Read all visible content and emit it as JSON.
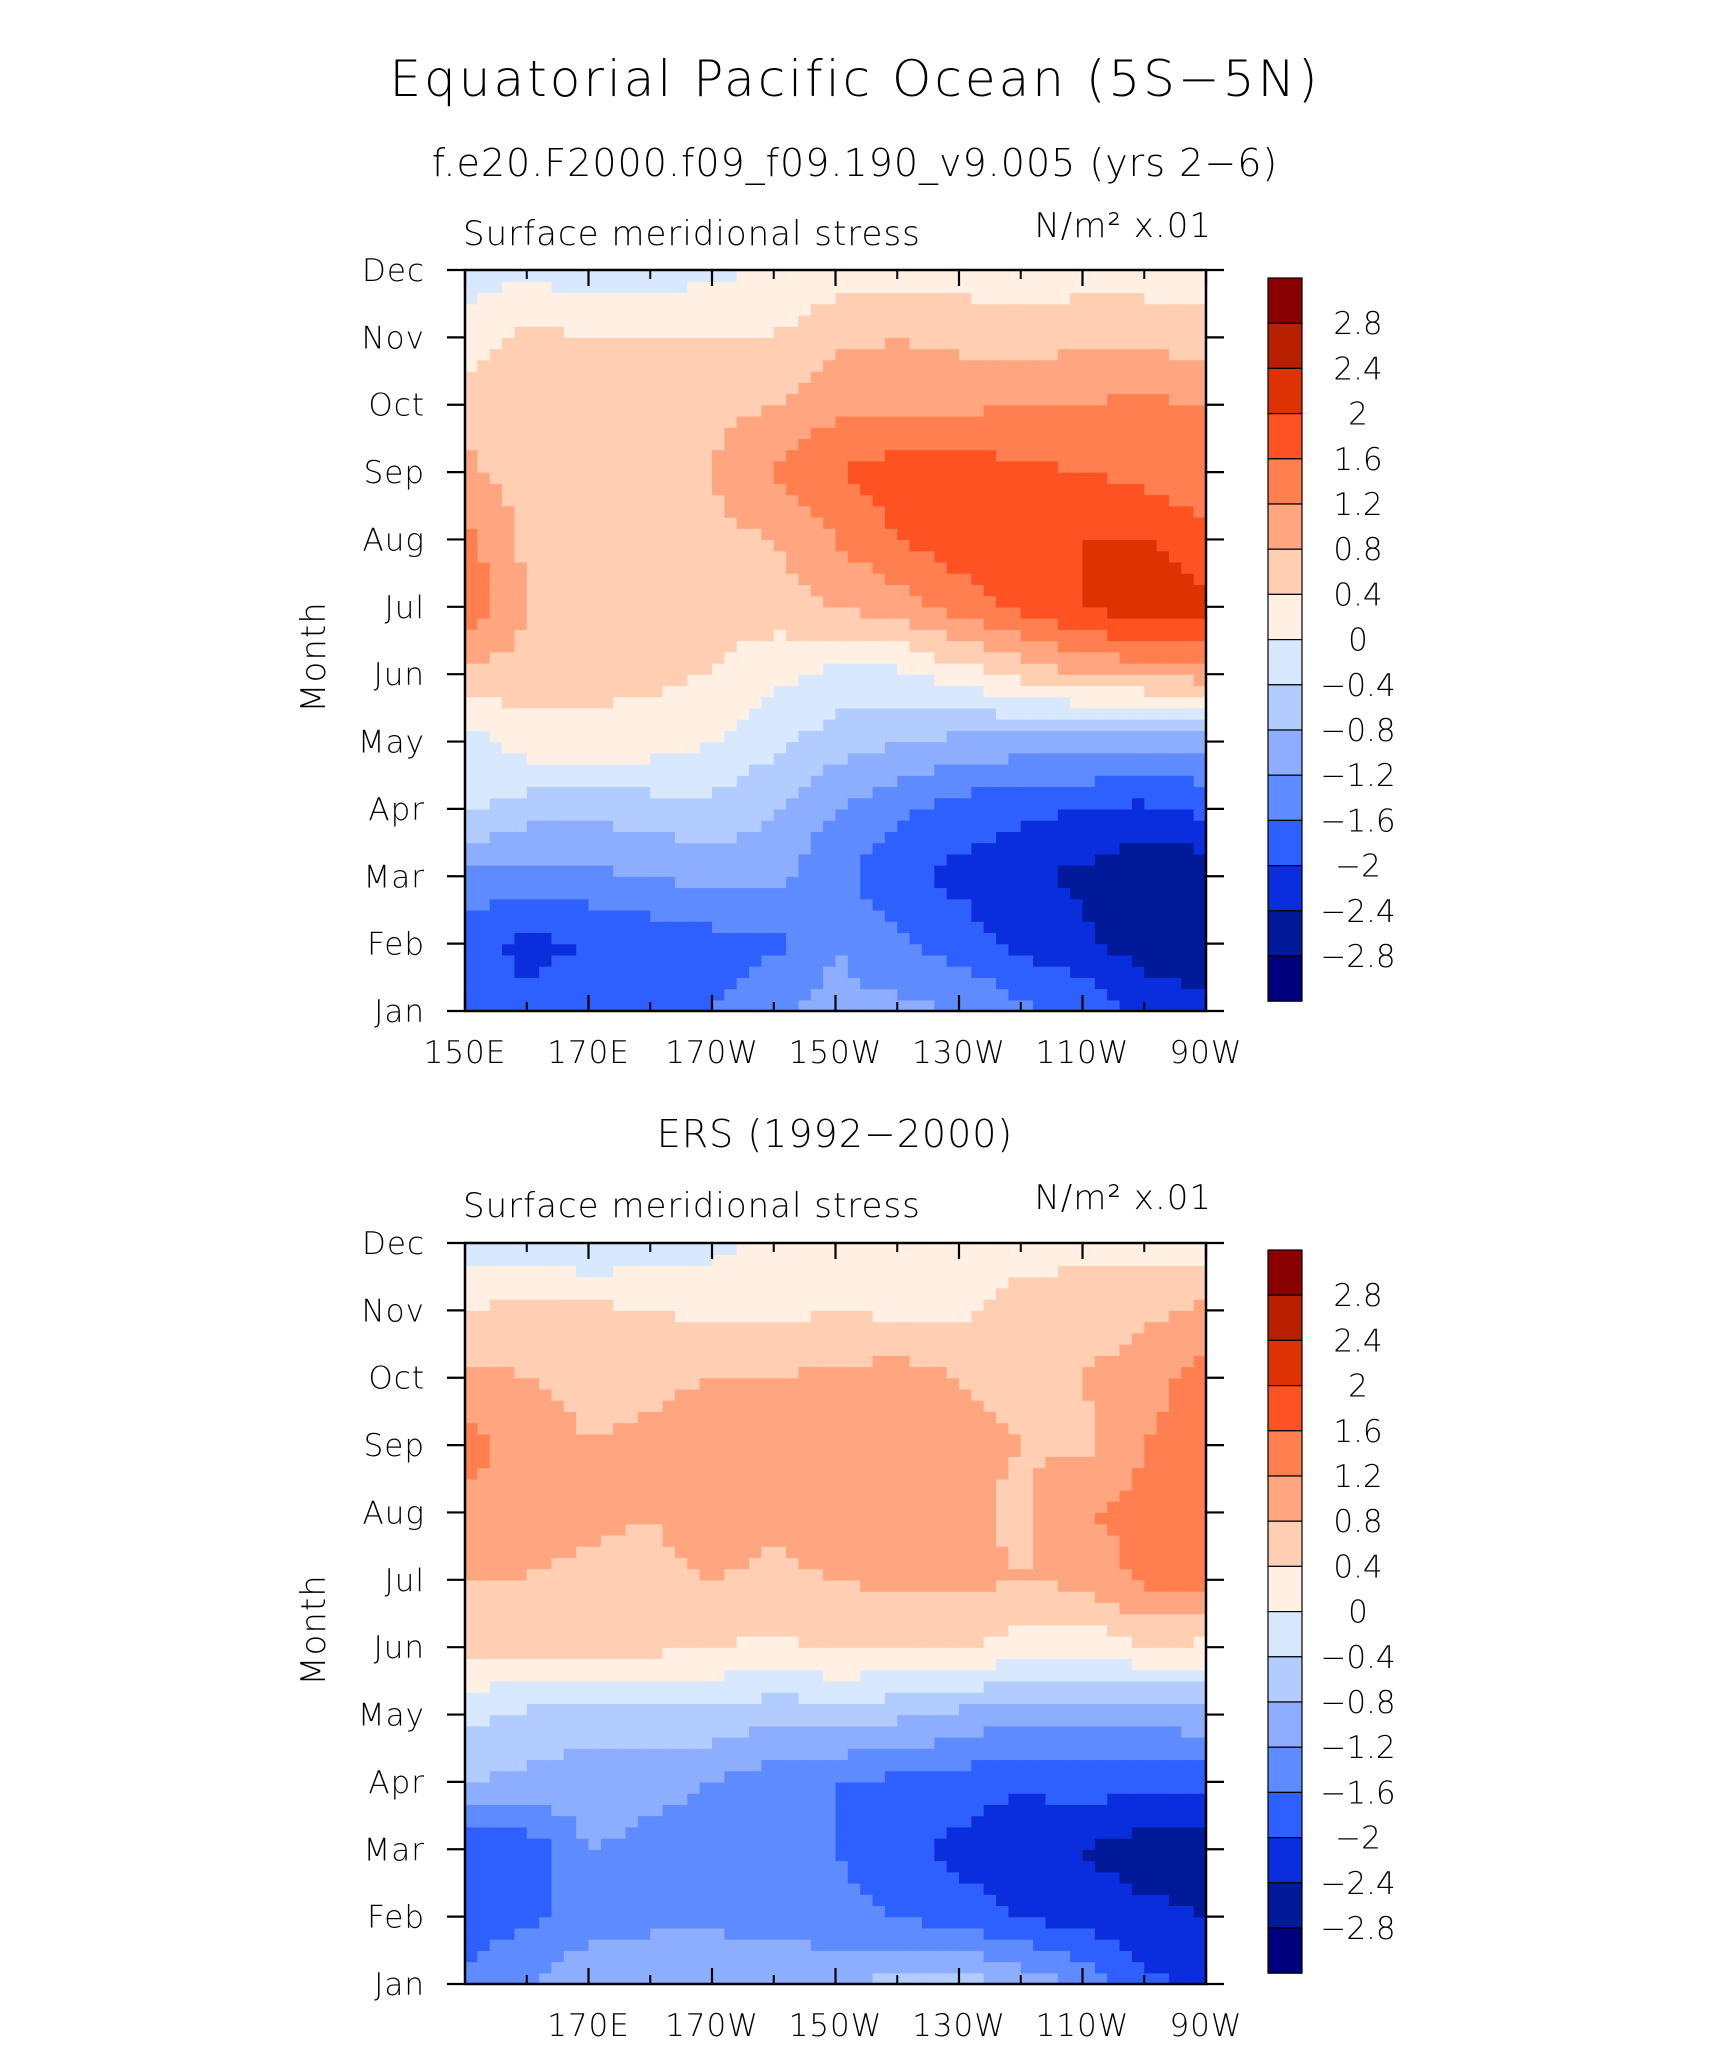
{
  "figure": {
    "title": "Equatorial Pacific Ocean (5S−5N)",
    "colorbar_levels": [
      "2.8",
      "2.4",
      "2",
      "1.6",
      "1.2",
      "0.8",
      "0.4",
      "0",
      "−0.4",
      "−0.8",
      "−1.2",
      "−1.6",
      "−2",
      "−2.4",
      "−2.8"
    ],
    "palette": [
      "#8B0000",
      "#B81E00",
      "#DF3203",
      "#FF5222",
      "#FF7F50",
      "#FFA57F",
      "#FFCEB3",
      "#FFF0E3",
      "#D8E9FF",
      "#B2CCFF",
      "#8DADFF",
      "#5E8BFF",
      "#2E5FFF",
      "#0A2EDD",
      "#001A99",
      "#00007F"
    ]
  },
  "chart_data": [
    {
      "type": "heatmap",
      "subtitle": "f.e20.F2000.f09_f09.190_v9.005 (yrs 2−6)",
      "left_label": "Surface meridional stress",
      "right_label": "N/m² x.01",
      "ylabel": "Month",
      "x_range": [
        150,
        270
      ],
      "x_tick_values": [
        150,
        170,
        190,
        210,
        230,
        250,
        270
      ],
      "x_tick_labels": [
        "150E",
        "170E",
        "170W",
        "150W",
        "130W",
        "110W",
        "90W"
      ],
      "y_tick_labels": [
        "Jan",
        "Feb",
        "Mar",
        "Apr",
        "May",
        "Jun",
        "Jul",
        "Aug",
        "Sep",
        "Oct",
        "Nov",
        "Dec"
      ],
      "color_levels": [
        -2.8,
        -2.4,
        -2.0,
        -1.6,
        -1.2,
        -0.8,
        -0.4,
        0.0,
        0.4,
        0.8,
        1.2,
        1.6,
        2.0,
        2.4,
        2.8
      ],
      "lon": [
        150,
        160,
        170,
        180,
        190,
        200,
        210,
        220,
        230,
        240,
        250,
        260,
        270
      ],
      "months": [
        "Jan",
        "Feb",
        "Mar",
        "Apr",
        "May",
        "Jun",
        "Jul",
        "Aug",
        "Sep",
        "Oct",
        "Nov",
        "Dec"
      ],
      "values": [
        [
          -1.8,
          -1.9,
          -1.8,
          -1.7,
          -1.6,
          -1.2,
          -1.1,
          -1.1,
          -1.2,
          -1.5,
          -1.7,
          -2.1,
          -2.3
        ],
        [
          -1.9,
          -2.1,
          -2.0,
          -1.9,
          -1.8,
          -1.7,
          -1.2,
          -1.5,
          -1.8,
          -2.1,
          -2.3,
          -2.6,
          -2.7
        ],
        [
          -1.3,
          -1.4,
          -1.3,
          -1.2,
          -1.0,
          -1.1,
          -1.5,
          -1.9,
          -2.1,
          -2.3,
          -2.5,
          -2.8,
          -2.7
        ],
        [
          -0.3,
          -0.6,
          -0.7,
          -0.6,
          -0.5,
          -0.8,
          -1.2,
          -1.5,
          -1.8,
          -1.9,
          -2.0,
          -2.1,
          -1.9
        ],
        [
          -0.2,
          0.2,
          0.3,
          0.2,
          0.0,
          -0.3,
          -0.6,
          -0.8,
          -0.9,
          -1.0,
          -1.0,
          -1.1,
          -1.1
        ],
        [
          0.7,
          0.6,
          0.5,
          0.5,
          0.4,
          0.1,
          -0.1,
          -0.1,
          0.2,
          0.5,
          0.8,
          0.9,
          1.0
        ],
        [
          1.6,
          0.8,
          0.6,
          0.6,
          0.6,
          0.6,
          0.8,
          1.0,
          1.4,
          1.7,
          2.0,
          2.3,
          2.1
        ],
        [
          1.3,
          0.7,
          0.6,
          0.6,
          0.7,
          0.8,
          1.2,
          1.6,
          1.8,
          1.9,
          2.0,
          2.0,
          1.8
        ],
        [
          0.9,
          0.6,
          0.6,
          0.6,
          0.8,
          1.2,
          1.6,
          1.8,
          1.8,
          1.7,
          1.6,
          1.5,
          1.2
        ],
        [
          0.6,
          0.6,
          0.6,
          0.7,
          0.7,
          0.8,
          1.1,
          1.1,
          1.1,
          1.2,
          1.2,
          1.3,
          1.2
        ],
        [
          0.2,
          0.5,
          0.4,
          0.4,
          0.4,
          0.4,
          0.7,
          0.8,
          0.7,
          0.6,
          0.7,
          0.7,
          0.6
        ],
        [
          -0.2,
          -0.1,
          -0.2,
          -0.2,
          -0.1,
          0.1,
          0.2,
          0.2,
          0.2,
          0.2,
          0.2,
          0.2,
          0.1
        ]
      ]
    },
    {
      "type": "heatmap",
      "subtitle": "ERS (1992−2000)",
      "left_label": "Surface meridional stress",
      "right_label": "N/m² x.01",
      "ylabel": "Month",
      "x_range": [
        150,
        270
      ],
      "x_tick_values": [
        170,
        190,
        210,
        230,
        250,
        270
      ],
      "x_tick_labels": [
        "170E",
        "170W",
        "150W",
        "130W",
        "110W",
        "90W"
      ],
      "y_tick_labels": [
        "Jan",
        "Feb",
        "Mar",
        "Apr",
        "May",
        "Jun",
        "Jul",
        "Aug",
        "Sep",
        "Oct",
        "Nov",
        "Dec"
      ],
      "color_levels": [
        -2.8,
        -2.4,
        -2.0,
        -1.6,
        -1.2,
        -0.8,
        -0.4,
        0.0,
        0.4,
        0.8,
        1.2,
        1.6,
        2.0,
        2.4,
        2.8
      ],
      "lon": [
        150,
        160,
        170,
        180,
        190,
        200,
        210,
        220,
        230,
        240,
        250,
        260,
        270
      ],
      "months": [
        "Jan",
        "Feb",
        "Mar",
        "Apr",
        "May",
        "Jun",
        "Jul",
        "Aug",
        "Sep",
        "Oct",
        "Nov",
        "Dec"
      ],
      "values": [
        [
          -1.5,
          -1.2,
          -0.9,
          -0.9,
          -0.8,
          -0.9,
          -0.8,
          -0.7,
          -0.6,
          -0.9,
          -1.3,
          -1.9,
          -2.1
        ],
        [
          -1.8,
          -1.7,
          -1.4,
          -1.3,
          -1.3,
          -1.4,
          -1.5,
          -1.6,
          -1.8,
          -2.0,
          -2.2,
          -2.3,
          -2.4
        ],
        [
          -1.9,
          -1.9,
          -1.2,
          -1.3,
          -1.4,
          -1.5,
          -1.6,
          -1.9,
          -2.1,
          -2.4,
          -2.4,
          -2.6,
          -2.6
        ],
        [
          -0.8,
          -0.9,
          -1.0,
          -1.1,
          -1.2,
          -1.4,
          -1.6,
          -1.7,
          -1.8,
          -1.9,
          -1.8,
          -1.9,
          -1.9
        ],
        [
          -0.3,
          -0.5,
          -0.6,
          -0.5,
          -0.5,
          -0.7,
          -0.6,
          -0.7,
          -0.9,
          -1.1,
          -1.0,
          -1.1,
          -0.9
        ],
        [
          0.6,
          0.5,
          0.5,
          0.5,
          0.4,
          0.3,
          0.5,
          0.4,
          0.5,
          0.2,
          0.1,
          0.4,
          0.3
        ],
        [
          0.8,
          0.8,
          0.7,
          0.7,
          0.8,
          0.7,
          0.8,
          0.9,
          0.9,
          0.8,
          0.9,
          1.3,
          1.4
        ],
        [
          1.0,
          0.9,
          0.9,
          0.8,
          1.0,
          0.9,
          1.1,
          1.1,
          0.9,
          0.7,
          1.2,
          1.3,
          1.5
        ],
        [
          1.4,
          1.0,
          0.8,
          0.9,
          1.0,
          1.0,
          1.0,
          1.0,
          0.9,
          0.8,
          0.7,
          1.2,
          1.4
        ],
        [
          0.9,
          0.8,
          0.7,
          0.7,
          0.8,
          0.8,
          0.9,
          1.0,
          0.8,
          0.7,
          0.8,
          1.0,
          1.4
        ],
        [
          0.4,
          0.6,
          0.5,
          0.4,
          0.3,
          0.3,
          0.4,
          0.3,
          0.3,
          0.6,
          0.6,
          0.7,
          0.9
        ],
        [
          -0.3,
          -0.2,
          -0.4,
          -0.2,
          -0.1,
          0.1,
          0.1,
          0.0,
          0.1,
          0.2,
          0.3,
          0.2,
          0.1
        ]
      ]
    }
  ]
}
